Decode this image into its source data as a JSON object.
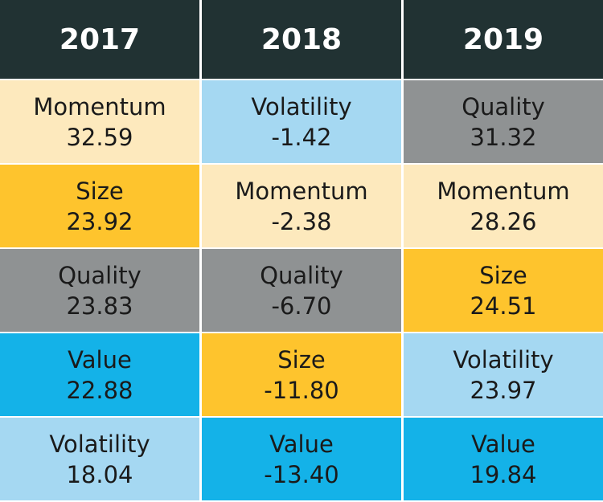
{
  "colors": {
    "header_bg": "#213233",
    "header_text": "#ffffff",
    "Momentum": "#fde9bd",
    "Volatility": "#a5d8f2",
    "Quality": "#8f9293",
    "Size": "#fec42d",
    "Value": "#14b2e8"
  },
  "chart_data": {
    "type": "table",
    "columns": [
      "2017",
      "2018",
      "2019"
    ],
    "rows": [
      [
        {
          "factor": "Momentum",
          "value": "32.59"
        },
        {
          "factor": "Volatility",
          "value": "-1.42"
        },
        {
          "factor": "Quality",
          "value": "31.32"
        }
      ],
      [
        {
          "factor": "Size",
          "value": "23.92"
        },
        {
          "factor": "Momentum",
          "value": "-2.38"
        },
        {
          "factor": "Momentum",
          "value": "28.26"
        }
      ],
      [
        {
          "factor": "Quality",
          "value": "23.83"
        },
        {
          "factor": "Quality",
          "value": "-6.70"
        },
        {
          "factor": "Size",
          "value": "24.51"
        }
      ],
      [
        {
          "factor": "Value",
          "value": "22.88"
        },
        {
          "factor": "Size",
          "value": "-11.80"
        },
        {
          "factor": "Volatility",
          "value": "23.97"
        }
      ],
      [
        {
          "factor": "Volatility",
          "value": "18.04"
        },
        {
          "factor": "Value",
          "value": "-13.40"
        },
        {
          "factor": "Value",
          "value": "19.84"
        }
      ]
    ]
  }
}
